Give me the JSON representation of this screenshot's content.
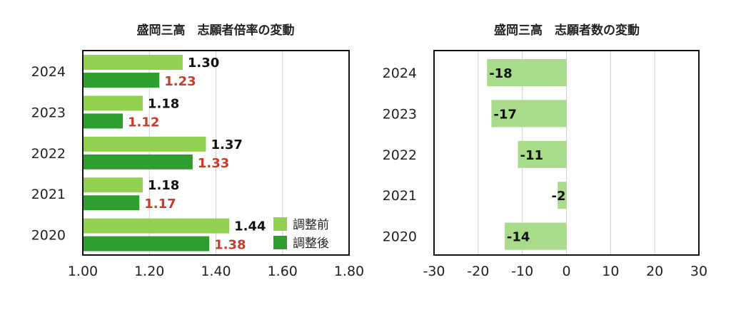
{
  "chart_data": [
    {
      "type": "bar",
      "orientation": "horizontal",
      "title": "盛岡三高　志願者倍率の変動",
      "categories": [
        "2024",
        "2023",
        "2022",
        "2021",
        "2020"
      ],
      "series": [
        {
          "name": "調整前",
          "values": [
            1.3,
            1.18,
            1.37,
            1.18,
            1.44
          ],
          "labels": [
            "1.30",
            "1.18",
            "1.37",
            "1.18",
            "1.44"
          ],
          "color": "#92d050"
        },
        {
          "name": "調整後",
          "values": [
            1.23,
            1.12,
            1.33,
            1.17,
            1.38
          ],
          "labels": [
            "1.23",
            "1.12",
            "1.33",
            "1.17",
            "1.38"
          ],
          "color": "#2e9e2e"
        }
      ],
      "xlim": [
        1.0,
        1.8
      ],
      "xticks": [
        "1.00",
        "1.20",
        "1.40",
        "1.60",
        "1.80"
      ],
      "grid": true,
      "legend": "bottom-right",
      "colors": {
        "before": "#92d050",
        "after": "#2e9e2e",
        "after_label": "#c83c2a"
      }
    },
    {
      "type": "bar",
      "orientation": "horizontal",
      "title": "盛岡三高　志願者数の変動",
      "categories": [
        "2024",
        "2023",
        "2022",
        "2021",
        "2020"
      ],
      "values": [
        -18,
        -17,
        -11,
        -2,
        -14
      ],
      "labels": [
        "-18",
        "-17",
        "-11",
        "-2",
        "-14"
      ],
      "xlim": [
        -30,
        30
      ],
      "xticks": [
        "-30",
        "-20",
        "-10",
        "0",
        "10",
        "20",
        "30"
      ],
      "grid": true,
      "colors": {
        "bar": "#a9dc8a"
      }
    }
  ]
}
